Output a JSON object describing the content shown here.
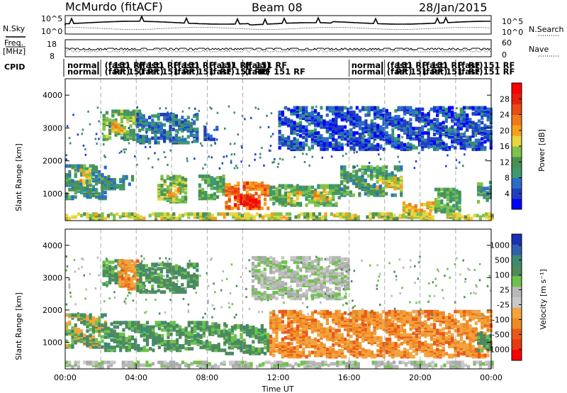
{
  "header": {
    "station": "McMurdo (fitACF)",
    "beam": "Beam 08",
    "date": "28/Jan/2015"
  },
  "panels": {
    "nsky_label": "N.Sky",
    "nsearch_label": "N.Search",
    "freq_label_1": "Freq.",
    "freq_label_2": "[MHz]",
    "nave_label": "Nave",
    "cpid_label": "CPID",
    "noise_ticks_left": [
      "10^5",
      "10^0"
    ],
    "noise_ticks_right": [
      "10^5",
      "10^0"
    ],
    "freq_ticks": [
      "18",
      "8"
    ],
    "nave_ticks": [
      "60",
      "0"
    ]
  },
  "cpid_rows": {
    "row1": [
      {
        "text": "normal",
        "h": 0.0
      },
      {
        "text": "(fast)",
        "h": 2.1
      },
      {
        "text": "151 RF",
        "h": 2.6
      },
      {
        "text": "(fast)",
        "h": 4.0
      },
      {
        "text": "151 RF",
        "h": 4.5
      },
      {
        "text": "(fast)",
        "h": 6.0
      },
      {
        "text": "151 RF",
        "h": 6.5
      },
      {
        "text": "(fast)",
        "h": 8.0
      },
      {
        "text": "151 RF",
        "h": 8.6
      },
      {
        "text": "(fast)",
        "h": 10.0
      },
      {
        "text": "151 RF",
        "h": 10.6
      },
      {
        "text": "normal",
        "h": 16.0
      },
      {
        "text": "(fast)",
        "h": 18.0
      },
      {
        "text": "151 RF",
        "h": 18.5
      },
      {
        "text": "(fast)",
        "h": 20.0
      },
      {
        "text": "151 RF",
        "h": 20.5
      },
      {
        "text": "(fast)",
        "h": 22.0
      },
      {
        "text": "RF 151 RF",
        "h": 22.6
      }
    ],
    "row2": [
      {
        "text": "normal",
        "h": 0.0
      },
      {
        "text": "(fast)",
        "h": 2.1
      },
      {
        "text": "RF 151",
        "h": 2.6
      },
      {
        "text": "(fast)",
        "h": 4.0
      },
      {
        "text": "RF 151",
        "h": 4.5
      },
      {
        "text": "(fast)",
        "h": 6.0
      },
      {
        "text": "RF 151",
        "h": 6.5
      },
      {
        "text": "(fast)",
        "h": 8.0
      },
      {
        "text": "RF 151 RF",
        "h": 8.6
      },
      {
        "text": "(fast)",
        "h": 10.0
      },
      {
        "text": "RF 151 RF",
        "h": 10.8
      },
      {
        "text": "normal",
        "h": 16.0
      },
      {
        "text": "(fast)",
        "h": 18.0
      },
      {
        "text": "RF 151",
        "h": 18.5
      },
      {
        "text": "(fast)",
        "h": 20.0
      },
      {
        "text": "RF 151",
        "h": 20.5
      },
      {
        "text": "(fast)",
        "h": 22.0
      },
      {
        "text": "RF 151 RF",
        "h": 22.6
      }
    ]
  },
  "chart_data": [
    {
      "type": "heatmap",
      "name": "power",
      "ylabel": "Slant Range [km]",
      "ylim": [
        180,
        4500
      ],
      "yticks": [
        1000,
        2000,
        3000,
        4000
      ],
      "xlim": [
        0,
        24
      ],
      "colorbar": {
        "label": "Power [dB]",
        "ticks": [
          4,
          8,
          12,
          16,
          20,
          24,
          28
        ],
        "range": [
          0,
          32
        ],
        "colors": [
          "#0000ff",
          "#1f3fbf",
          "#2b6ec9",
          "#3c9b6e",
          "#4c8f52",
          "#7fc24a",
          "#e8d63c",
          "#f7a11c",
          "#f07a1a",
          "#e84c14",
          "#e6200e",
          "#ff0000"
        ]
      },
      "blobs": [
        {
          "t0": 0.0,
          "t1": 2.2,
          "r0": 800,
          "r1": 1800,
          "v": 10
        },
        {
          "t0": 0.8,
          "t1": 1.4,
          "r0": 1250,
          "r1": 1700,
          "v": 18
        },
        {
          "t0": 2.1,
          "t1": 4.3,
          "r0": 2600,
          "r1": 3500,
          "v": 13
        },
        {
          "t0": 2.6,
          "t1": 3.2,
          "r0": 2800,
          "r1": 3200,
          "v": 19
        },
        {
          "t0": 2.2,
          "t1": 3.8,
          "r0": 1100,
          "r1": 1500,
          "v": 9
        },
        {
          "t0": 4.0,
          "t1": 7.5,
          "r0": 2500,
          "r1": 3400,
          "v": 7
        },
        {
          "t0": 5.2,
          "t1": 6.8,
          "r0": 700,
          "r1": 1500,
          "v": 14
        },
        {
          "t0": 5.8,
          "t1": 6.4,
          "r0": 900,
          "r1": 1200,
          "v": 20
        },
        {
          "t0": 7.5,
          "t1": 9.0,
          "r0": 800,
          "r1": 1500,
          "v": 12
        },
        {
          "t0": 7.8,
          "t1": 8.6,
          "r0": 2600,
          "r1": 3000,
          "v": 6
        },
        {
          "t0": 9.0,
          "t1": 11.5,
          "r0": 500,
          "r1": 1300,
          "v": 23
        },
        {
          "t0": 9.5,
          "t1": 11.0,
          "r0": 560,
          "r1": 900,
          "v": 29
        },
        {
          "t0": 11.5,
          "t1": 15.5,
          "r0": 600,
          "r1": 1200,
          "v": 12
        },
        {
          "t0": 12.5,
          "t1": 13.5,
          "r0": 700,
          "r1": 1000,
          "v": 18
        },
        {
          "t0": 14.0,
          "t1": 15.0,
          "r0": 750,
          "r1": 1050,
          "v": 19
        },
        {
          "t0": 15.5,
          "t1": 19.0,
          "r0": 900,
          "r1": 1800,
          "v": 11
        },
        {
          "t0": 17.5,
          "t1": 19.0,
          "r0": 1100,
          "r1": 1450,
          "v": 17
        },
        {
          "t0": 19.0,
          "t1": 21.0,
          "r0": 300,
          "r1": 700,
          "v": 19
        },
        {
          "t0": 20.8,
          "t1": 22.3,
          "r0": 400,
          "r1": 1100,
          "v": 12
        },
        {
          "t0": 23.2,
          "t1": 24.0,
          "r0": 700,
          "r1": 1300,
          "v": 10
        },
        {
          "t0": 12.0,
          "t1": 24.0,
          "r0": 2300,
          "r1": 3600,
          "v": 5
        },
        {
          "t0": 0.0,
          "t1": 24.0,
          "r0": 190,
          "r1": 330,
          "v": 16
        }
      ]
    },
    {
      "type": "heatmap",
      "name": "velocity",
      "ylabel": "Slant Range [km]",
      "xlabel": "Time UT",
      "ylim": [
        180,
        4500
      ],
      "yticks": [
        1000,
        2000,
        3000,
        4000
      ],
      "xlim": [
        0,
        24
      ],
      "xticks": [
        "00:00",
        "04:00",
        "08:00",
        "12:00",
        "16:00",
        "20:00",
        "00:00"
      ],
      "colorbar": {
        "label": "Velocity [m s⁻¹]",
        "ticks": [
          "1000",
          "500",
          "100",
          "25",
          "-25",
          "-100",
          "-500",
          "-1000"
        ],
        "colors": [
          "#1b2fb5",
          "#2f5fae",
          "#3d8a72",
          "#4f8a5a",
          "#6dc24a",
          "#b8b8b8",
          "#c8c8c8",
          "#f3a43d",
          "#ef8a23",
          "#e85a18",
          "#e63a12",
          "#ff0000"
        ]
      },
      "blobs": [
        {
          "t0": 0.0,
          "t1": 2.2,
          "r0": 800,
          "r1": 1800,
          "v": "low"
        },
        {
          "t0": 2.1,
          "t1": 3.2,
          "r0": 2700,
          "r1": 3500,
          "v": "green"
        },
        {
          "t0": 3.0,
          "t1": 4.3,
          "r0": 2600,
          "r1": 3500,
          "v": "orange"
        },
        {
          "t0": 4.0,
          "t1": 7.5,
          "r0": 2500,
          "r1": 3400,
          "v": "green"
        },
        {
          "t0": 2.2,
          "t1": 9.0,
          "r0": 700,
          "r1": 1600,
          "v": "green"
        },
        {
          "t0": 9.0,
          "t1": 11.5,
          "r0": 600,
          "r1": 1500,
          "v": "green"
        },
        {
          "t0": 11.5,
          "t1": 24.0,
          "r0": 500,
          "r1": 1900,
          "v": "orange"
        },
        {
          "t0": 16.0,
          "t1": 20.0,
          "r0": 1300,
          "r1": 1900,
          "v": "orange"
        },
        {
          "t0": 10.5,
          "t1": 16.0,
          "r0": 2300,
          "r1": 3600,
          "v": "gray"
        },
        {
          "t0": 23.2,
          "t1": 24.0,
          "r0": 700,
          "r1": 1300,
          "v": "green"
        },
        {
          "t0": 0.0,
          "t1": 24.0,
          "r0": 190,
          "r1": 330,
          "v": "gray"
        }
      ]
    }
  ]
}
